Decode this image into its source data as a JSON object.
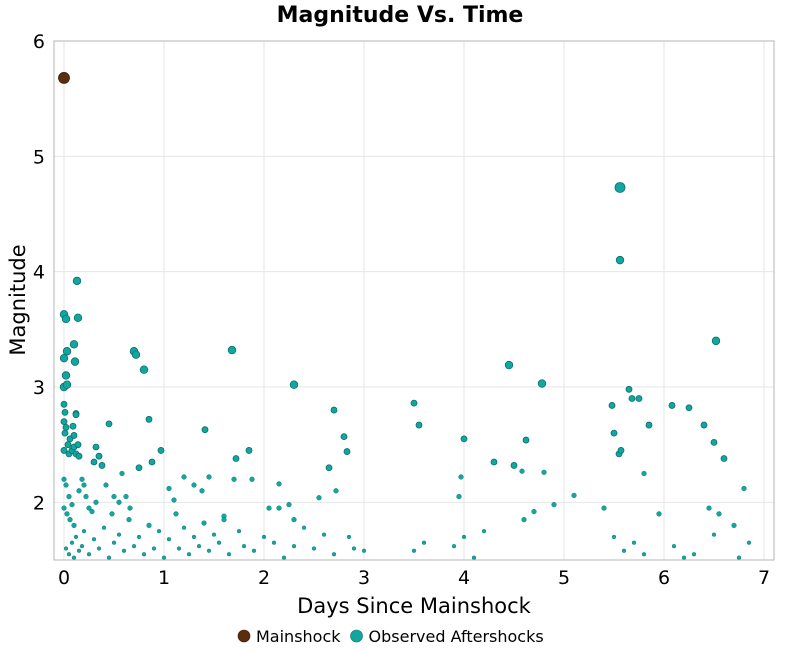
{
  "chart_data": {
    "type": "scatter",
    "title": "Magnitude Vs. Time",
    "xlabel": "Days Since Mainshock",
    "ylabel": "Magnitude",
    "xlim": [
      -0.1,
      7.1
    ],
    "ylim": [
      1.5,
      6.0
    ],
    "xticks": [
      "0",
      "1",
      "2",
      "3",
      "4",
      "5",
      "6",
      "7"
    ],
    "yticks": [
      "2",
      "3",
      "4",
      "5",
      "6"
    ],
    "grid": true,
    "legend_position": "bottom",
    "series": [
      {
        "name": "Mainshock",
        "color": "#5a2d0c",
        "points": [
          [
            0.0,
            5.68
          ]
        ]
      },
      {
        "name": "Observed Aftershocks",
        "color": "#11a7a0",
        "points": [
          [
            0.0,
            3.63
          ],
          [
            0.02,
            3.59
          ],
          [
            0.0,
            3.25
          ],
          [
            0.03,
            3.31
          ],
          [
            0.02,
            3.1
          ],
          [
            0.0,
            3.0
          ],
          [
            0.03,
            3.02
          ],
          [
            0.0,
            2.85
          ],
          [
            0.01,
            2.78
          ],
          [
            0.0,
            2.7
          ],
          [
            0.02,
            2.65
          ],
          [
            0.01,
            2.6
          ],
          [
            0.04,
            2.5
          ],
          [
            0.0,
            2.45
          ],
          [
            0.05,
            2.42
          ],
          [
            0.08,
            2.45
          ],
          [
            0.1,
            2.48
          ],
          [
            0.06,
            2.55
          ],
          [
            0.09,
            2.66
          ],
          [
            0.12,
            2.77
          ],
          [
            0.1,
            2.58
          ],
          [
            0.14,
            2.5
          ],
          [
            0.12,
            2.42
          ],
          [
            0.1,
            3.37
          ],
          [
            0.11,
            3.22
          ],
          [
            0.13,
            3.92
          ],
          [
            0.14,
            3.6
          ],
          [
            0.12,
            2.76
          ],
          [
            0.15,
            2.4
          ],
          [
            0.0,
            2.2
          ],
          [
            0.02,
            2.15
          ],
          [
            0.05,
            2.05
          ],
          [
            0.08,
            1.98
          ],
          [
            0.0,
            1.95
          ],
          [
            0.03,
            1.9
          ],
          [
            0.06,
            1.85
          ],
          [
            0.1,
            1.8
          ],
          [
            0.15,
            2.1
          ],
          [
            0.18,
            2.2
          ],
          [
            0.2,
            2.15
          ],
          [
            0.22,
            2.05
          ],
          [
            0.25,
            1.95
          ],
          [
            0.28,
            1.92
          ],
          [
            0.3,
            2.35
          ],
          [
            0.32,
            2.48
          ],
          [
            0.35,
            2.4
          ],
          [
            0.38,
            2.32
          ],
          [
            0.45,
            2.68
          ],
          [
            0.42,
            2.15
          ],
          [
            0.5,
            2.05
          ],
          [
            0.55,
            2.0
          ],
          [
            0.58,
            2.25
          ],
          [
            0.62,
            2.05
          ],
          [
            0.7,
            3.31
          ],
          [
            0.72,
            3.28
          ],
          [
            0.8,
            3.15
          ],
          [
            0.75,
            2.3
          ],
          [
            0.85,
            2.72
          ],
          [
            0.88,
            2.35
          ],
          [
            0.97,
            2.45
          ],
          [
            1.05,
            2.12
          ],
          [
            1.1,
            2.02
          ],
          [
            1.2,
            2.22
          ],
          [
            1.3,
            2.15
          ],
          [
            1.38,
            2.1
          ],
          [
            1.41,
            2.63
          ],
          [
            1.45,
            2.22
          ],
          [
            1.68,
            3.32
          ],
          [
            1.7,
            2.2
          ],
          [
            1.72,
            2.38
          ],
          [
            1.85,
            2.45
          ],
          [
            1.88,
            2.2
          ],
          [
            2.15,
            2.16
          ],
          [
            2.3,
            3.02
          ],
          [
            2.15,
            1.95
          ],
          [
            2.25,
            1.98
          ],
          [
            2.3,
            1.85
          ],
          [
            2.55,
            2.04
          ],
          [
            2.65,
            2.3
          ],
          [
            2.7,
            2.8
          ],
          [
            2.72,
            2.1
          ],
          [
            2.8,
            2.57
          ],
          [
            2.83,
            2.44
          ],
          [
            2.85,
            1.7
          ],
          [
            3.5,
            2.86
          ],
          [
            3.55,
            2.67
          ],
          [
            3.95,
            2.05
          ],
          [
            3.97,
            2.22
          ],
          [
            4.0,
            2.55
          ],
          [
            4.3,
            2.35
          ],
          [
            4.45,
            3.19
          ],
          [
            4.5,
            2.32
          ],
          [
            4.58,
            2.27
          ],
          [
            4.62,
            2.54
          ],
          [
            4.78,
            3.03
          ],
          [
            4.8,
            2.26
          ],
          [
            5.1,
            2.06
          ],
          [
            5.48,
            2.84
          ],
          [
            5.5,
            2.6
          ],
          [
            5.55,
            2.42
          ],
          [
            5.57,
            2.45
          ],
          [
            5.56,
            4.73
          ],
          [
            5.56,
            4.1
          ],
          [
            5.65,
            2.98
          ],
          [
            5.68,
            2.9
          ],
          [
            5.75,
            2.9
          ],
          [
            5.8,
            2.25
          ],
          [
            5.85,
            2.67
          ],
          [
            6.08,
            2.84
          ],
          [
            6.25,
            2.82
          ],
          [
            6.4,
            2.67
          ],
          [
            6.52,
            3.4
          ],
          [
            6.5,
            2.52
          ],
          [
            6.6,
            2.38
          ],
          [
            6.45,
            1.95
          ],
          [
            6.8,
            2.12
          ],
          [
            6.55,
            1.9
          ],
          [
            0.02,
            1.6
          ],
          [
            0.05,
            1.55
          ],
          [
            0.08,
            1.65
          ],
          [
            0.1,
            1.52
          ],
          [
            0.12,
            1.7
          ],
          [
            0.15,
            1.58
          ],
          [
            0.18,
            1.62
          ],
          [
            0.2,
            1.75
          ],
          [
            0.25,
            1.55
          ],
          [
            0.3,
            1.68
          ],
          [
            0.35,
            1.6
          ],
          [
            0.4,
            1.78
          ],
          [
            0.45,
            1.52
          ],
          [
            0.5,
            1.65
          ],
          [
            0.55,
            1.72
          ],
          [
            0.6,
            1.58
          ],
          [
            0.65,
            1.85
          ],
          [
            0.7,
            1.62
          ],
          [
            0.75,
            1.7
          ],
          [
            0.8,
            1.55
          ],
          [
            0.85,
            1.8
          ],
          [
            0.9,
            1.6
          ],
          [
            0.95,
            1.75
          ],
          [
            1.0,
            1.52
          ],
          [
            1.05,
            1.68
          ],
          [
            1.15,
            1.6
          ],
          [
            1.2,
            1.78
          ],
          [
            1.25,
            1.55
          ],
          [
            1.3,
            1.7
          ],
          [
            1.35,
            1.62
          ],
          [
            1.4,
            1.82
          ],
          [
            1.45,
            1.58
          ],
          [
            1.5,
            1.72
          ],
          [
            1.55,
            1.65
          ],
          [
            1.6,
            1.88
          ],
          [
            1.65,
            1.55
          ],
          [
            1.75,
            1.75
          ],
          [
            1.8,
            1.62
          ],
          [
            1.9,
            1.58
          ],
          [
            2.0,
            1.7
          ],
          [
            2.1,
            1.65
          ],
          [
            2.2,
            1.52
          ],
          [
            2.3,
            1.62
          ],
          [
            2.4,
            1.78
          ],
          [
            2.5,
            1.6
          ],
          [
            2.6,
            1.72
          ],
          [
            2.7,
            1.55
          ],
          [
            2.9,
            1.6
          ],
          [
            3.0,
            1.58
          ],
          [
            3.5,
            1.58
          ],
          [
            3.6,
            1.65
          ],
          [
            3.9,
            1.62
          ],
          [
            4.0,
            1.7
          ],
          [
            4.1,
            1.52
          ],
          [
            4.2,
            1.75
          ],
          [
            4.6,
            1.85
          ],
          [
            4.7,
            1.92
          ],
          [
            4.9,
            1.98
          ],
          [
            5.4,
            1.95
          ],
          [
            5.5,
            1.7
          ],
          [
            5.6,
            1.58
          ],
          [
            5.7,
            1.65
          ],
          [
            5.8,
            1.55
          ],
          [
            5.95,
            1.9
          ],
          [
            6.1,
            1.62
          ],
          [
            6.2,
            1.52
          ],
          [
            6.3,
            1.55
          ],
          [
            6.5,
            1.72
          ],
          [
            6.7,
            1.8
          ],
          [
            6.75,
            1.52
          ],
          [
            6.85,
            1.65
          ],
          [
            0.32,
            2.0
          ],
          [
            0.48,
            1.9
          ],
          [
            0.66,
            1.95
          ],
          [
            1.12,
            1.9
          ],
          [
            1.6,
            1.85
          ],
          [
            2.05,
            1.95
          ]
        ]
      }
    ]
  }
}
